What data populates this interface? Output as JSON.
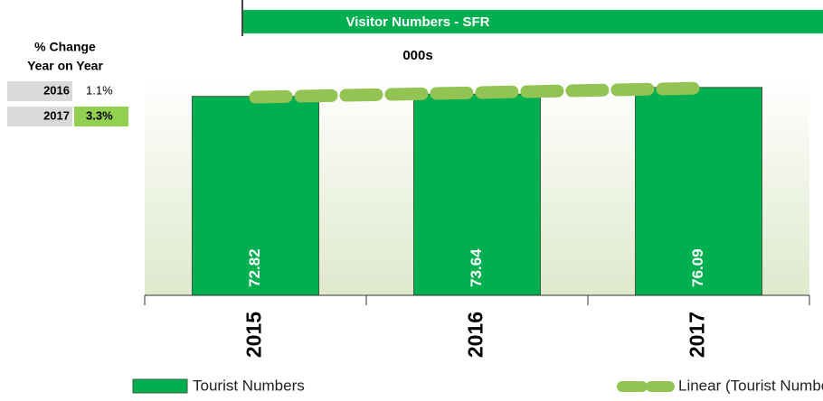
{
  "chart_data": {
    "type": "bar",
    "title": "Visitor Numbers - SFR",
    "subtitle": "000s",
    "categories": [
      "2015",
      "2016",
      "2017"
    ],
    "series": [
      {
        "name": "Tourist Numbers",
        "color": "#00b050",
        "values": [
          72.82,
          73.64,
          76.09
        ]
      }
    ],
    "trendline": {
      "name": "Linear (Tourist Numbers)",
      "kind": "linear",
      "color": "#92c353"
    },
    "ylim": [
      0,
      80
    ],
    "legend": "bottom"
  },
  "change_table": {
    "title_lines": [
      "% Change",
      "Year on Year"
    ],
    "rows": [
      [
        "2016",
        "1.1%"
      ],
      [
        "2017",
        "3.3%"
      ]
    ]
  }
}
